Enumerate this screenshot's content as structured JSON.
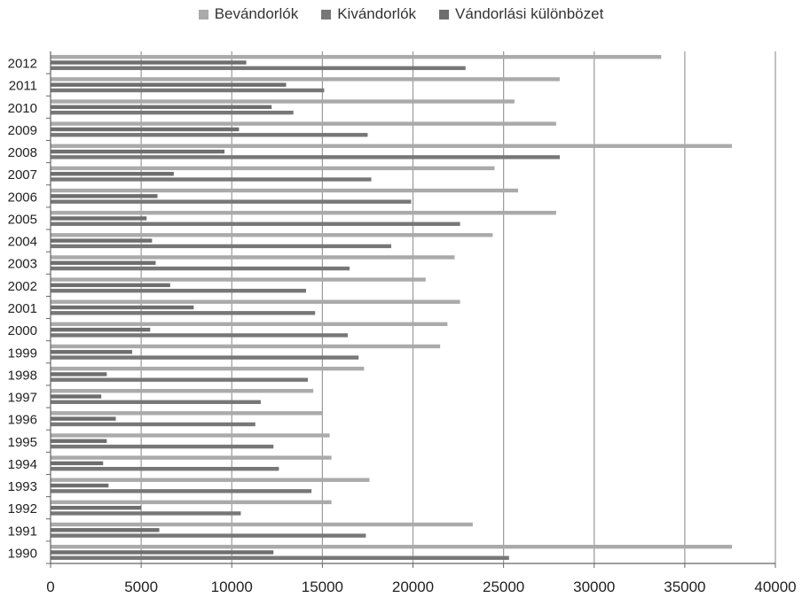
{
  "chart_data": {
    "type": "bar",
    "orientation": "horizontal",
    "categories": [
      "1990",
      "1991",
      "1992",
      "1993",
      "1994",
      "1995",
      "1996",
      "1997",
      "1998",
      "1999",
      "2000",
      "2001",
      "2002",
      "2003",
      "2004",
      "2005",
      "2006",
      "2007",
      "2008",
      "2009",
      "2010",
      "2011",
      "2012"
    ],
    "series": [
      {
        "name": "Bevándorlók",
        "color": "#aaaaaa",
        "values": [
          37600,
          23300,
          15500,
          17600,
          15500,
          15400,
          15000,
          14500,
          17300,
          21500,
          21900,
          22600,
          20700,
          22300,
          24400,
          27900,
          25800,
          24500,
          37600,
          27900,
          25600,
          28100,
          33700
        ]
      },
      {
        "name": "Kivándorlók",
        "color": "#777777",
        "values": [
          25300,
          17400,
          10500,
          14400,
          12600,
          12300,
          11300,
          11600,
          14200,
          17000,
          16400,
          14600,
          14100,
          16500,
          18800,
          22600,
          19900,
          17700,
          28100,
          17500,
          13400,
          15100,
          22900
        ]
      },
      {
        "name": "Vándorlási különbözet",
        "color": "#6e6e6e",
        "values": [
          12300,
          6000,
          5000,
          3200,
          2900,
          3100,
          3600,
          2800,
          3100,
          4500,
          5500,
          7900,
          6600,
          5800,
          5600,
          5300,
          5900,
          6800,
          9600,
          10400,
          12200,
          13000,
          10800
        ]
      }
    ],
    "xlim": [
      0,
      40000
    ],
    "xticks": [
      "0",
      "5000",
      "10000",
      "15000",
      "20000",
      "25000",
      "30000",
      "35000",
      "40000"
    ],
    "grid": true,
    "legend_position": "top"
  }
}
